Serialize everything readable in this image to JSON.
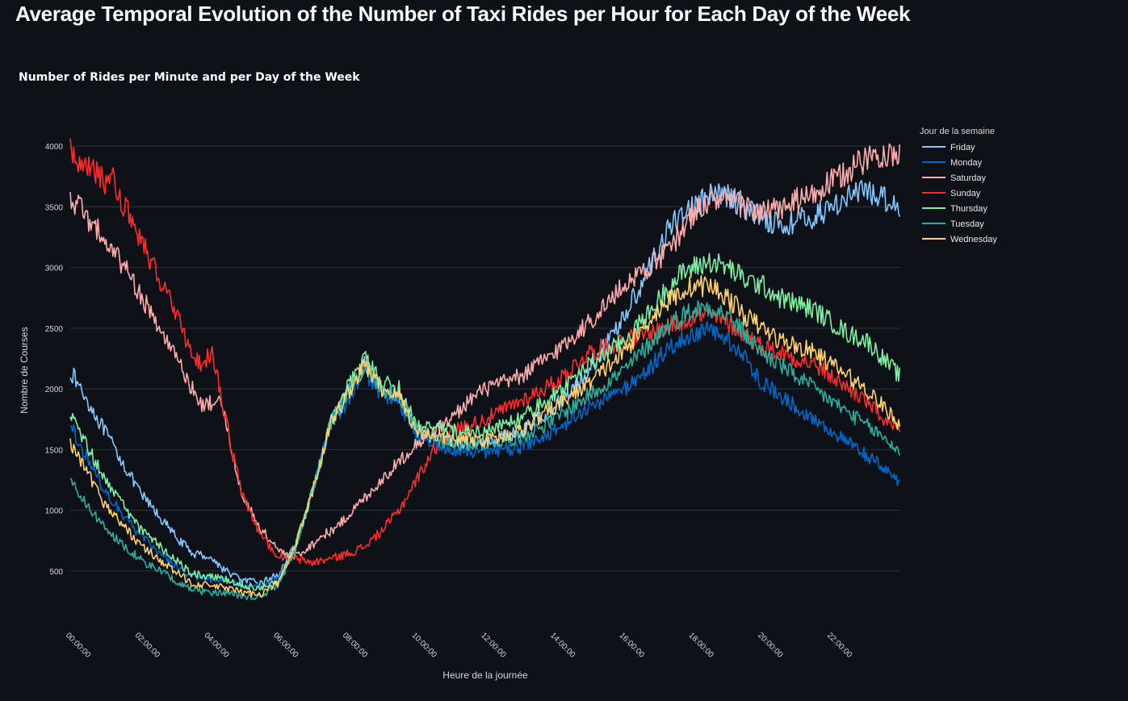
{
  "page": {
    "title": "Average Temporal Evolution of the Number of Taxi Rides per Hour for Each Day of the Week"
  },
  "chart_data": {
    "type": "line",
    "title": "Number of Rides per Minute and per Day of the Week",
    "xlabel": "Heure de la journée",
    "ylabel": "Nombre de Courses",
    "x_unit": "minute of day",
    "xlim": [
      0,
      1439
    ],
    "ylim": [
      100,
      4300
    ],
    "x_ticks": [
      0,
      120,
      240,
      360,
      480,
      600,
      720,
      840,
      960,
      1080,
      1200,
      1320
    ],
    "x_tick_labels": [
      "00:00:00",
      "02:00:00",
      "04:00:00",
      "06:00:00",
      "08:00:00",
      "10:00:00",
      "12:00:00",
      "14:00:00",
      "16:00:00",
      "18:00:00",
      "20:00:00",
      "22:00:00"
    ],
    "y_ticks": [
      500,
      1000,
      1500,
      2000,
      2500,
      3000,
      3500,
      4000
    ],
    "grid": true,
    "legend": {
      "title": "Jour de la semaine",
      "placement": "right"
    },
    "series": [
      {
        "name": "Friday",
        "color": "#83c9ff",
        "points": [
          [
            0,
            2150
          ],
          [
            60,
            1650
          ],
          [
            120,
            1150
          ],
          [
            180,
            800
          ],
          [
            210,
            650
          ],
          [
            240,
            620
          ],
          [
            270,
            500
          ],
          [
            300,
            420
          ],
          [
            330,
            400
          ],
          [
            360,
            470
          ],
          [
            390,
            700
          ],
          [
            420,
            1150
          ],
          [
            450,
            1700
          ],
          [
            480,
            1950
          ],
          [
            510,
            2200
          ],
          [
            540,
            2000
          ],
          [
            570,
            1950
          ],
          [
            600,
            1650
          ],
          [
            630,
            1600
          ],
          [
            660,
            1550
          ],
          [
            720,
            1550
          ],
          [
            780,
            1650
          ],
          [
            840,
            1850
          ],
          [
            900,
            2150
          ],
          [
            960,
            2600
          ],
          [
            1000,
            2950
          ],
          [
            1030,
            3250
          ],
          [
            1060,
            3450
          ],
          [
            1080,
            3500
          ],
          [
            1110,
            3580
          ],
          [
            1140,
            3600
          ],
          [
            1170,
            3500
          ],
          [
            1200,
            3420
          ],
          [
            1230,
            3350
          ],
          [
            1260,
            3380
          ],
          [
            1290,
            3420
          ],
          [
            1320,
            3500
          ],
          [
            1350,
            3600
          ],
          [
            1380,
            3620
          ],
          [
            1410,
            3580
          ],
          [
            1439,
            3500
          ]
        ]
      },
      {
        "name": "Monday",
        "color": "#0068c9",
        "points": [
          [
            0,
            1700
          ],
          [
            60,
            1150
          ],
          [
            120,
            800
          ],
          [
            180,
            550
          ],
          [
            210,
            450
          ],
          [
            240,
            430
          ],
          [
            270,
            430
          ],
          [
            300,
            380
          ],
          [
            330,
            370
          ],
          [
            360,
            430
          ],
          [
            390,
            700
          ],
          [
            420,
            1150
          ],
          [
            450,
            1700
          ],
          [
            480,
            1900
          ],
          [
            510,
            2150
          ],
          [
            540,
            1950
          ],
          [
            570,
            1900
          ],
          [
            600,
            1600
          ],
          [
            630,
            1550
          ],
          [
            660,
            1500
          ],
          [
            720,
            1480
          ],
          [
            780,
            1520
          ],
          [
            840,
            1650
          ],
          [
            900,
            1850
          ],
          [
            960,
            2000
          ],
          [
            1000,
            2150
          ],
          [
            1030,
            2300
          ],
          [
            1060,
            2400
          ],
          [
            1080,
            2450
          ],
          [
            1110,
            2480
          ],
          [
            1140,
            2400
          ],
          [
            1170,
            2250
          ],
          [
            1200,
            2050
          ],
          [
            1230,
            1950
          ],
          [
            1260,
            1850
          ],
          [
            1290,
            1750
          ],
          [
            1320,
            1650
          ],
          [
            1350,
            1550
          ],
          [
            1380,
            1450
          ],
          [
            1410,
            1350
          ],
          [
            1439,
            1230
          ]
        ]
      },
      {
        "name": "Saturday",
        "color": "#ffabab",
        "points": [
          [
            0,
            3580
          ],
          [
            40,
            3350
          ],
          [
            80,
            3100
          ],
          [
            120,
            2800
          ],
          [
            160,
            2450
          ],
          [
            200,
            2100
          ],
          [
            230,
            1850
          ],
          [
            250,
            1900
          ],
          [
            260,
            1950
          ],
          [
            280,
            1500
          ],
          [
            300,
            1100
          ],
          [
            330,
            850
          ],
          [
            360,
            680
          ],
          [
            380,
            600
          ],
          [
            400,
            650
          ],
          [
            420,
            720
          ],
          [
            440,
            800
          ],
          [
            460,
            850
          ],
          [
            480,
            950
          ],
          [
            510,
            1100
          ],
          [
            540,
            1250
          ],
          [
            570,
            1400
          ],
          [
            600,
            1550
          ],
          [
            630,
            1650
          ],
          [
            660,
            1750
          ],
          [
            690,
            1900
          ],
          [
            720,
            2000
          ],
          [
            780,
            2100
          ],
          [
            840,
            2300
          ],
          [
            900,
            2550
          ],
          [
            940,
            2750
          ],
          [
            970,
            2900
          ],
          [
            1000,
            3000
          ],
          [
            1030,
            3100
          ],
          [
            1060,
            3300
          ],
          [
            1080,
            3450
          ],
          [
            1110,
            3550
          ],
          [
            1140,
            3550
          ],
          [
            1170,
            3500
          ],
          [
            1200,
            3450
          ],
          [
            1230,
            3480
          ],
          [
            1260,
            3550
          ],
          [
            1290,
            3600
          ],
          [
            1320,
            3700
          ],
          [
            1350,
            3800
          ],
          [
            1380,
            3900
          ],
          [
            1410,
            3950
          ],
          [
            1439,
            3900
          ]
        ]
      },
      {
        "name": "Sunday",
        "color": "#ff2b2b",
        "points": [
          [
            0,
            3950
          ],
          [
            40,
            3800
          ],
          [
            60,
            3700
          ],
          [
            70,
            3750
          ],
          [
            80,
            3650
          ],
          [
            100,
            3450
          ],
          [
            120,
            3250
          ],
          [
            150,
            2950
          ],
          [
            180,
            2650
          ],
          [
            210,
            2300
          ],
          [
            230,
            2200
          ],
          [
            245,
            2300
          ],
          [
            260,
            2000
          ],
          [
            280,
            1500
          ],
          [
            300,
            1100
          ],
          [
            330,
            800
          ],
          [
            360,
            620
          ],
          [
            390,
            600
          ],
          [
            420,
            570
          ],
          [
            450,
            600
          ],
          [
            480,
            640
          ],
          [
            510,
            700
          ],
          [
            540,
            830
          ],
          [
            570,
            1000
          ],
          [
            600,
            1250
          ],
          [
            630,
            1500
          ],
          [
            660,
            1650
          ],
          [
            690,
            1700
          ],
          [
            720,
            1750
          ],
          [
            780,
            1900
          ],
          [
            840,
            2050
          ],
          [
            900,
            2300
          ],
          [
            960,
            2400
          ],
          [
            1000,
            2450
          ],
          [
            1030,
            2500
          ],
          [
            1060,
            2550
          ],
          [
            1080,
            2600
          ],
          [
            1110,
            2600
          ],
          [
            1140,
            2550
          ],
          [
            1170,
            2450
          ],
          [
            1200,
            2350
          ],
          [
            1230,
            2300
          ],
          [
            1260,
            2250
          ],
          [
            1290,
            2200
          ],
          [
            1320,
            2100
          ],
          [
            1350,
            2000
          ],
          [
            1380,
            1900
          ],
          [
            1410,
            1750
          ],
          [
            1439,
            1620
          ]
        ]
      },
      {
        "name": "Thursday",
        "color": "#7defa1",
        "points": [
          [
            0,
            1800
          ],
          [
            60,
            1250
          ],
          [
            120,
            850
          ],
          [
            180,
            600
          ],
          [
            210,
            480
          ],
          [
            240,
            450
          ],
          [
            270,
            430
          ],
          [
            300,
            380
          ],
          [
            330,
            360
          ],
          [
            360,
            420
          ],
          [
            390,
            700
          ],
          [
            420,
            1150
          ],
          [
            450,
            1700
          ],
          [
            480,
            2000
          ],
          [
            510,
            2250
          ],
          [
            540,
            2050
          ],
          [
            570,
            2000
          ],
          [
            600,
            1700
          ],
          [
            630,
            1700
          ],
          [
            660,
            1650
          ],
          [
            720,
            1650
          ],
          [
            780,
            1750
          ],
          [
            840,
            1950
          ],
          [
            900,
            2200
          ],
          [
            960,
            2400
          ],
          [
            1000,
            2600
          ],
          [
            1030,
            2800
          ],
          [
            1060,
            2950
          ],
          [
            1080,
            3000
          ],
          [
            1110,
            3050
          ],
          [
            1140,
            3000
          ],
          [
            1170,
            2900
          ],
          [
            1200,
            2850
          ],
          [
            1230,
            2750
          ],
          [
            1260,
            2700
          ],
          [
            1290,
            2650
          ],
          [
            1320,
            2550
          ],
          [
            1350,
            2450
          ],
          [
            1380,
            2400
          ],
          [
            1410,
            2250
          ],
          [
            1439,
            2100
          ]
        ]
      },
      {
        "name": "Tuesday",
        "color": "#29b09d",
        "points": [
          [
            0,
            1250
          ],
          [
            60,
            850
          ],
          [
            120,
            600
          ],
          [
            180,
            430
          ],
          [
            210,
            350
          ],
          [
            240,
            320
          ],
          [
            270,
            320
          ],
          [
            300,
            290
          ],
          [
            330,
            290
          ],
          [
            360,
            380
          ],
          [
            390,
            680
          ],
          [
            420,
            1150
          ],
          [
            450,
            1700
          ],
          [
            480,
            1950
          ],
          [
            510,
            2200
          ],
          [
            540,
            2000
          ],
          [
            570,
            1950
          ],
          [
            600,
            1650
          ],
          [
            630,
            1600
          ],
          [
            660,
            1550
          ],
          [
            720,
            1550
          ],
          [
            780,
            1600
          ],
          [
            840,
            1750
          ],
          [
            900,
            1950
          ],
          [
            960,
            2150
          ],
          [
            1000,
            2350
          ],
          [
            1030,
            2500
          ],
          [
            1060,
            2600
          ],
          [
            1080,
            2650
          ],
          [
            1110,
            2680
          ],
          [
            1140,
            2600
          ],
          [
            1170,
            2450
          ],
          [
            1200,
            2300
          ],
          [
            1230,
            2200
          ],
          [
            1260,
            2100
          ],
          [
            1290,
            2000
          ],
          [
            1320,
            1900
          ],
          [
            1350,
            1800
          ],
          [
            1380,
            1700
          ],
          [
            1410,
            1600
          ],
          [
            1439,
            1480
          ]
        ]
      },
      {
        "name": "Wednesday",
        "color": "#ffd16a",
        "points": [
          [
            0,
            1550
          ],
          [
            60,
            1050
          ],
          [
            120,
            720
          ],
          [
            180,
            500
          ],
          [
            210,
            400
          ],
          [
            240,
            380
          ],
          [
            270,
            360
          ],
          [
            300,
            320
          ],
          [
            330,
            310
          ],
          [
            360,
            400
          ],
          [
            390,
            700
          ],
          [
            420,
            1150
          ],
          [
            450,
            1700
          ],
          [
            480,
            1950
          ],
          [
            510,
            2200
          ],
          [
            540,
            2000
          ],
          [
            570,
            1950
          ],
          [
            600,
            1650
          ],
          [
            630,
            1620
          ],
          [
            660,
            1580
          ],
          [
            720,
            1580
          ],
          [
            780,
            1650
          ],
          [
            840,
            1850
          ],
          [
            900,
            2050
          ],
          [
            960,
            2300
          ],
          [
            1000,
            2550
          ],
          [
            1030,
            2700
          ],
          [
            1060,
            2800
          ],
          [
            1080,
            2850
          ],
          [
            1110,
            2850
          ],
          [
            1140,
            2750
          ],
          [
            1170,
            2600
          ],
          [
            1200,
            2500
          ],
          [
            1230,
            2400
          ],
          [
            1260,
            2350
          ],
          [
            1290,
            2300
          ],
          [
            1320,
            2200
          ],
          [
            1350,
            2100
          ],
          [
            1380,
            2000
          ],
          [
            1410,
            1850
          ],
          [
            1439,
            1700
          ]
        ]
      }
    ]
  }
}
